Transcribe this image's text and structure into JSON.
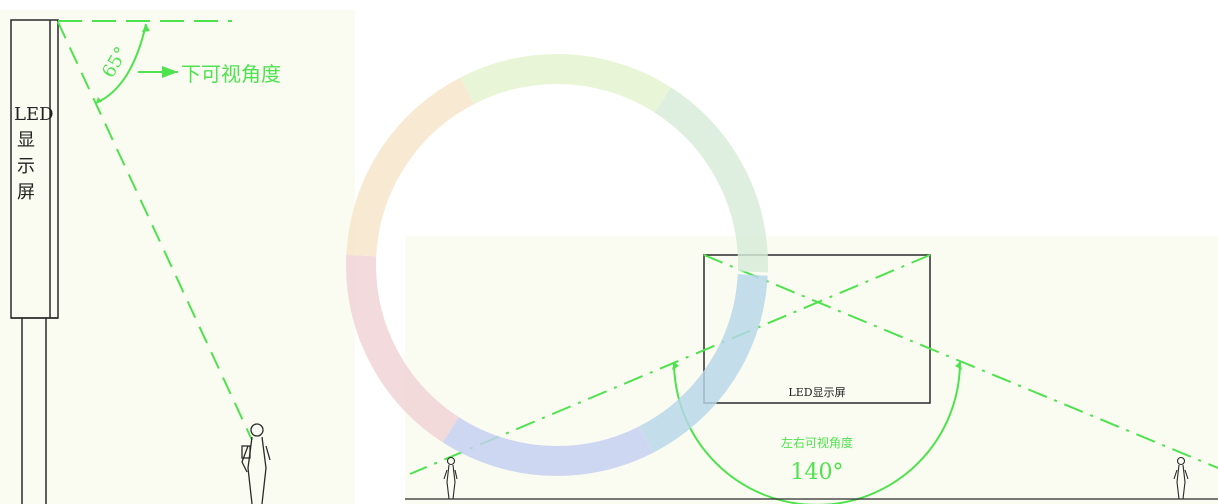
{
  "left_panel": {
    "screen_label_lines": [
      "LED",
      "显",
      "示",
      "屏"
    ],
    "angle_value": "65°",
    "angle_caption": "下可视角度"
  },
  "right_panel": {
    "screen_label": "LED显示屏",
    "angle_caption": "左右可视角度",
    "angle_value": "140°"
  },
  "colors": {
    "background_left": "#fbfcf1",
    "background_right": "#fbfcf1",
    "accent_green": "#4fe24f",
    "line_dark": "#2a2a2a"
  },
  "watermark": {
    "type": "ring-logo",
    "colors": [
      "#b8d7ea",
      "#c5d0f3",
      "#f1d2d6",
      "#f7e5c9",
      "#e5f4cf",
      "#d7ecd8"
    ]
  }
}
